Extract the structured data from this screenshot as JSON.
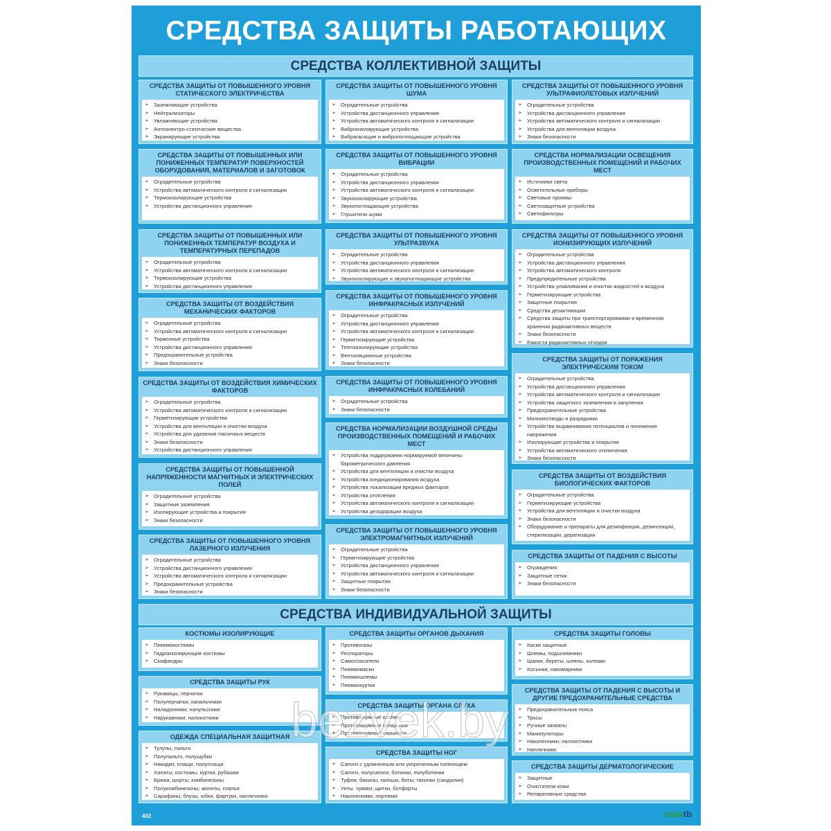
{
  "title": "СРЕДСТВА ЗАЩИТЫ РАБОТАЮЩИХ",
  "collective": {
    "heading": "СРЕДСТВА КОЛЛЕКТИВНОЙ ЗАЩИТЫ",
    "columns": [
      [
        {
          "title": "Средства защиты от повышенного уровня статического электричества",
          "items": [
            "Заземляющие устройства",
            "Нейтрализаторы",
            "Увлажняющие устройства",
            "Антиэлектро-статические вещества",
            "Экранирующие устройства"
          ]
        },
        {
          "title": "Средства защиты от повышенных или пониженных температур поверхностей оборудования, материалов и заготовок",
          "items": [
            "Оградительные устройства",
            "Устройства автоматического контроля и сигнализации",
            "Термоизолирующие устройства",
            "Устройства дистанционного управления"
          ]
        },
        {
          "title": "Средства защиты от повышенных или пониженных температур воздуха и температурных перепадов",
          "items": [
            "Оградительные устройства",
            "Устройства автоматического контроля и сигнализации",
            "Термоизолирующие устройства",
            "Устройства дистанционного управления"
          ]
        },
        {
          "title": "Средства защиты от воздействия механических факторов",
          "items": [
            "Оградительные устройства",
            "Устройства автоматического контроля и сигнализации",
            "Тормозные устройства",
            "Устройства дистанционного управления",
            "Предохранительные устройства",
            "Знаки безопасности"
          ]
        },
        {
          "title": "Средства защиты от воздействия химических факторов",
          "items": [
            "Оградительные устройства",
            "Устройства автоматического контроля и сигнализации",
            "Герметизирующие устройства",
            "Устройства для вентиляции и очистки воздуха",
            "Устройства для удаления токсичных веществ",
            "Знаки безопасности",
            "Устройства дистанционного управления"
          ]
        },
        {
          "title": "Средства защиты от повышенной напряженности магнитных и электрических полей",
          "items": [
            "Оградительные устройства",
            "Защитные заземления",
            "Изолирующие устройства и покрытия",
            "Знаки безопасности"
          ]
        },
        {
          "title": "Средства защиты от повышенного уровня лазерного излучения",
          "items": [
            "Оградительные устройства",
            "Устройства дистанционного управления",
            "Устройства автоматического контроля и сигнализации",
            "Предохранительные устройства",
            "Знаки безопасности"
          ]
        }
      ],
      [
        {
          "title": "Средства защиты от повышенного уровня шума",
          "items": [
            "Оградительные устройства",
            "Устройства дистанционного управления",
            "Устройства автоматического контроля и сигнализации",
            "Виброизолирующие устройства",
            "Вибрагасящие и вибропоглощающие устройства"
          ]
        },
        {
          "title": "Средства защиты от повышенного уровня вибрации",
          "items": [
            "Оградительные устройства",
            "Устройства дистанционного управления",
            "Устройства автоматического контроля и сигнализации",
            "Звукоизолирующие устройства",
            "Звукопоглощающие устройства",
            "Глушители шума"
          ]
        },
        {
          "title": "Средства защиты от повышенного уровня ультразвука",
          "items": [
            "Оградительные устройства",
            "Устройства дистанционного управления",
            "Устройства автоматического контроля и сигнализации",
            "Звукоизолирующие и звукопоглощающие устройства"
          ]
        },
        {
          "title": "Средства защиты от повышенного уровня инфракрасных излучений",
          "items": [
            "Оградительные устройства",
            "Устройства дистанционного управления",
            "Устройства автоматического контроля и сигнализации",
            "Герметизирующие устройства",
            "Теплоизолирующие устройства",
            "Вентиляционные устройства",
            "Знаки безопасности"
          ]
        },
        {
          "title": "Средства защиты от повышенного уровня инфракрасных колебаний",
          "items": [
            "Оградительные устройства",
            "Знаки безопасности"
          ]
        },
        {
          "title": "Средства нормализации воздушной среды производственных помещений и рабочих мест",
          "items": [
            "Устройства поддержания нормируемой величины барометрического давления",
            "Устройства для вентиляции и очистки воздуха",
            "Устройства кондиционирования воздуха",
            "Устройства локализации вредных факторов",
            "Устройства отопления",
            "Устройства автоматического контроля и сигнализации",
            "Устройства дезодорации воздуха"
          ]
        },
        {
          "title": "Средства защиты от повышенного уровня электромагнитных излучений",
          "items": [
            "Оградительные устройства",
            "Герметизирующие устройства",
            "Устройства дистанционного управления",
            "Устройства автоматического контроля и сигнализации",
            "Защитные покрытия",
            "Знаки безопасности"
          ]
        }
      ],
      [
        {
          "title": "Средства защиты от повышенного уровня ультрафиолетовых излучений",
          "items": [
            "Оградительные устройства",
            "Устройства дистанционного управления",
            "Устройства автоматического контроля и сигнализации",
            "Устройства для вентиляции воздуха",
            "Знаки безопасности"
          ]
        },
        {
          "title": "Средства нормализации освещения производственных помещений и рабочих мест",
          "items": [
            "Источники света",
            "Осветительные приборы",
            "Световые проемы",
            "Светозащитные устройства",
            "Светофильтры"
          ]
        },
        {
          "title": "Средства защиты от повышенного уровня ионизирующих излучений",
          "items": [
            "Оградительные устройства",
            "Устройства дистанционного управления",
            "Устройства автоматического контроля",
            "Предупредительные устройства",
            "Устройства улавливания и очистки жидкостей и воздуха",
            "Герметизирующие устройства",
            "Защитные покрытия",
            "Средства дезактивации",
            "Средства защиты при транспортировании и временном хранении радиоактивных веществ",
            "Знаки безопасности",
            "Емкости радиоактивных отходов"
          ]
        },
        {
          "title": "Средства защиты от поражения электрическим током",
          "items": [
            "Оградительные устройства",
            "Устройства дистанционного управления",
            "Устройства автоматического контроля и сигнализации",
            "Устройства защитного заземления и зануления",
            "Предохранительные устройства",
            "Молниеотводы и разрядники",
            "Устройства выравнивания потенциалов и понижения напряжения",
            "Изолирующие устройства и покрытия",
            "Устройства автоматического отключения",
            "Знаки безопасности"
          ]
        },
        {
          "title": "Средства защиты от воздействия биологических факторов",
          "items": [
            "Оградительные устройства",
            "Герметизирующие устройства",
            "Устройства для вентиляции и очистки воздуха",
            "Знаки безопасности",
            "Оборудование и препараты для дезинфекции, дезинсекции, стерилизации, дератизации"
          ]
        },
        {
          "title": "Средства защиты от падения с высоты",
          "items": [
            "Ограждения",
            "Защитные сетки",
            "Знаки безопасности"
          ]
        }
      ]
    ]
  },
  "individual": {
    "heading": "СРЕДСТВА ИНДИВИДУАЛЬНОЙ ЗАЩИТЫ",
    "columns": [
      [
        {
          "title": "Костюмы изолирующие",
          "items": [
            "Пневмокостюмы",
            "Гидроизолирующие костюмы",
            "Скафандры"
          ]
        },
        {
          "title": "Средства защиты рук",
          "items": [
            "Рукавицы; перчатки",
            "Полуперчатки; напальчники",
            "Наладонники; напульсники",
            "Нарукавники; налокотники"
          ]
        },
        {
          "title": "Одежда специальная защитная",
          "items": [
            "Тулупы, пальто",
            "Полупальто, полушубки",
            "Накидки; плащи, полуплащи",
            "Халаты; костюмы; куртки, рубашки",
            "Брюки, шорты; комбинезоны",
            "Полукомбинезоны; жилеты, платья",
            "Сарафаны; блузы, юбки, фартуки, наплечники"
          ]
        }
      ],
      [
        {
          "title": "Средства защиты органов дыхания",
          "items": [
            "Противогазы",
            "Респираторы",
            "Самоспасатели",
            "Пневмомаски",
            "Пневмошлемы",
            "Пневмокуртки"
          ]
        },
        {
          "title": "Средства защиты органа слуха",
          "items": [
            "Противошумные шлемы",
            "Противошумные вкладыши",
            "Противошумные наушники"
          ]
        },
        {
          "title": "Средства защиты ног",
          "items": [
            "Сапоги с удлиненным или укороченным голенищем",
            "Сапоги, полусапоги; ботинки, полуботинки",
            "Туфли; бахилы, галоши, боты; тапочки (сандалии)",
            "Унты, чувяки; щитки, ботфорты",
            "Наколенники; портянки"
          ]
        }
      ],
      [
        {
          "title": "Средства защиты головы",
          "items": [
            "Каски защитные",
            "Шлемы, подшлемники",
            "Шапки, береты, шляпы, колпаки",
            "Косынки, накомарники"
          ]
        },
        {
          "title": "Средства защиты от падения с высоты и другие предохранительные средства",
          "items": [
            "Предохранительные пояса",
            "Тросы",
            "Ручные захваты",
            "Манипуляторы",
            "Наколенники, налокотники",
            "Наплечники"
          ]
        },
        {
          "title": "Средства защиты дерматологические",
          "items": [
            "Защитные",
            "Очистители кожи",
            "Репаративные средства"
          ]
        }
      ]
    ]
  },
  "footer": {
    "code": "402",
    "logo_a": "znak",
    "logo_b": "tb"
  },
  "watermark": "bezvek.by",
  "colors": {
    "background": "#1f9fda",
    "header_band": "#8ed3f1",
    "heading_text": "#1c3f5e"
  }
}
